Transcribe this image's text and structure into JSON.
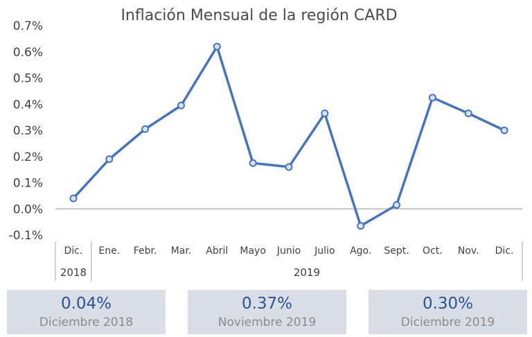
{
  "chart_data": {
    "type": "line",
    "title": "Inflación Mensual de la región CARD",
    "categories": [
      "Dic.",
      "Ene.",
      "Febr.",
      "Mar.",
      "Abril",
      "Mayo",
      "Junio",
      "Julio",
      "Ago.",
      "Sept.",
      "Oct.",
      "Nov.",
      "Dic."
    ],
    "year_groups": [
      {
        "label": "2018",
        "count": 1
      },
      {
        "label": "2019",
        "count": 12
      }
    ],
    "series": [
      {
        "values": [
          0.04,
          0.19,
          0.305,
          0.395,
          0.62,
          0.175,
          0.16,
          0.365,
          -0.065,
          0.015,
          0.425,
          0.365,
          0.3
        ]
      }
    ],
    "ylim": [
      -0.1,
      0.7
    ],
    "yticks": [
      -0.1,
      0.0,
      0.1,
      0.2,
      0.3,
      0.4,
      0.5,
      0.6,
      0.7
    ],
    "ytick_labels": [
      "-0.1%",
      "0.0%",
      "0.1%",
      "0.2%",
      "0.3%",
      "0.4%",
      "0.5%",
      "0.6%",
      "0.7%"
    ],
    "grid": false,
    "legend": "none",
    "colors": {
      "line": "#4472c4",
      "marker_fill": "#dbe4f3",
      "axis": "#a6a6a6"
    }
  },
  "summary_cards": [
    {
      "value": "0.04%",
      "label": "Diciembre 2018"
    },
    {
      "value": "0.37%",
      "label": "Noviembre 2019"
    },
    {
      "value": "0.30%",
      "label": "Diciembre 2019"
    }
  ]
}
